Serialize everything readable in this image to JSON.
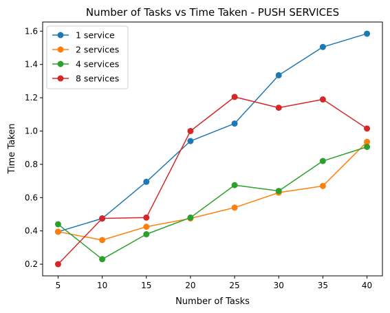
{
  "chart_data": {
    "type": "line",
    "title": "Number of Tasks vs Time Taken - PUSH SERVICES",
    "xlabel": "Number of Tasks",
    "ylabel": "Time Taken",
    "x": [
      5,
      10,
      15,
      20,
      25,
      30,
      35,
      40
    ],
    "xticks": [
      "5",
      "10",
      "15",
      "20",
      "25",
      "30",
      "35",
      "40"
    ],
    "yticks": [
      "0.2",
      "0.4",
      "0.6",
      "0.8",
      "1.0",
      "1.2",
      "1.4",
      "1.6"
    ],
    "xlim": [
      3.25,
      41.75
    ],
    "ylim": [
      0.13,
      1.655
    ],
    "grid": false,
    "legend_position": "top-left",
    "series": [
      {
        "name": "1 service",
        "color": "#1f77b4",
        "values": [
          0.395,
          0.475,
          0.695,
          0.94,
          1.045,
          1.335,
          1.505,
          1.585
        ]
      },
      {
        "name": "2 services",
        "color": "#ff7f0e",
        "values": [
          0.395,
          0.345,
          0.425,
          0.475,
          0.54,
          0.63,
          0.67,
          0.935
        ]
      },
      {
        "name": "4 services",
        "color": "#2ca02c",
        "values": [
          0.44,
          0.23,
          0.38,
          0.48,
          0.675,
          0.64,
          0.82,
          0.905
        ]
      },
      {
        "name": "8 services",
        "color": "#d62728",
        "values": [
          0.2,
          0.475,
          0.48,
          1.0,
          1.205,
          1.14,
          1.19,
          1.015
        ]
      }
    ]
  }
}
